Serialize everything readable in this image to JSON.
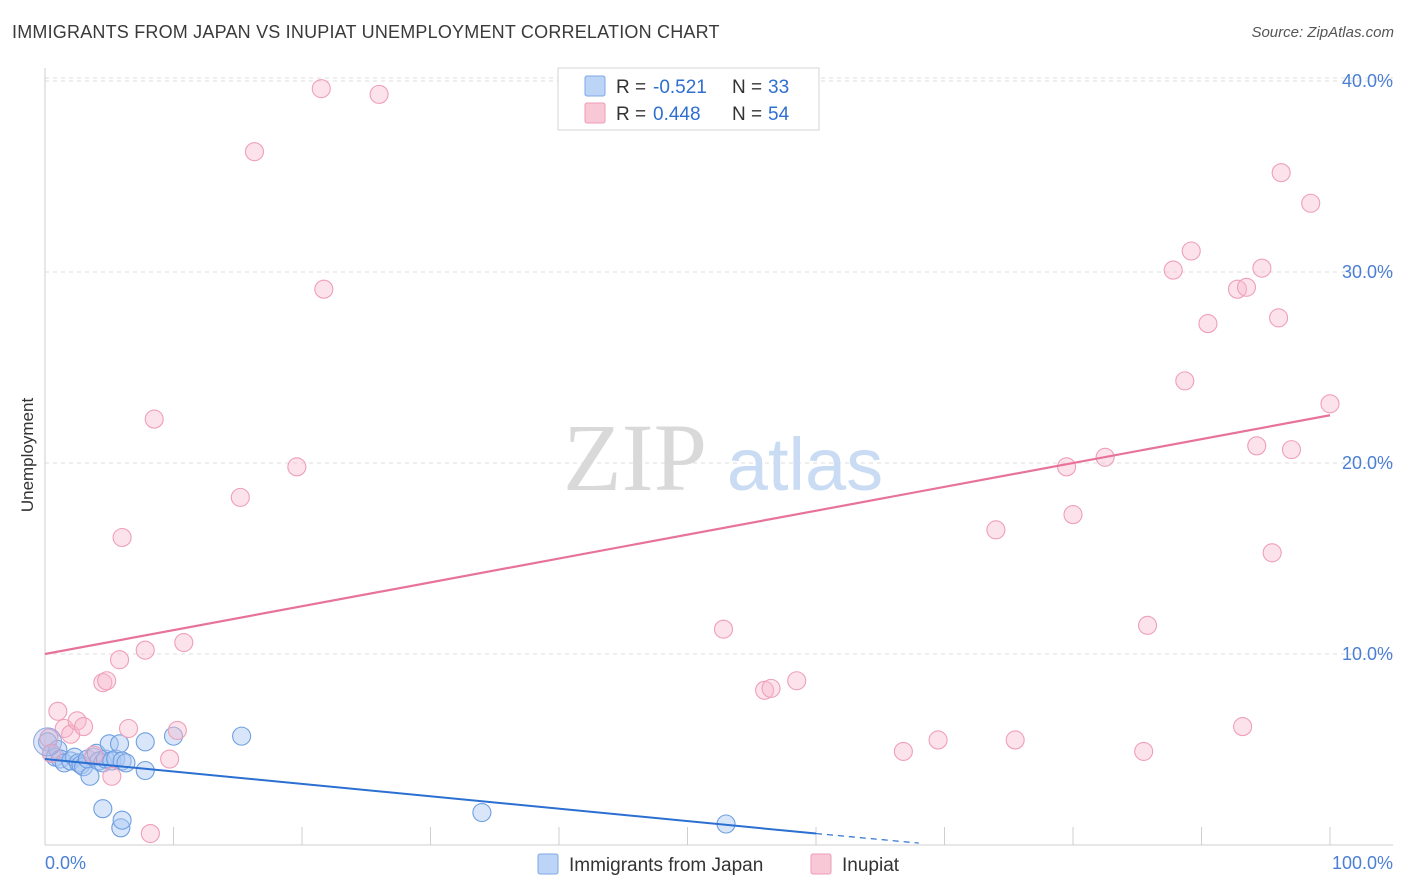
{
  "header": {
    "title": "IMMIGRANTS FROM JAPAN VS INUPIAT UNEMPLOYMENT CORRELATION CHART",
    "source": "Source: ZipAtlas.com"
  },
  "watermark": {
    "zip": "ZIP",
    "atlas": "atlas"
  },
  "colors": {
    "blue": "#8ab4f0",
    "blue_line": "#2a6fd1",
    "pink": "#f4a9c0",
    "pink_line": "#e8739a",
    "axis_text": "#4a7fd4"
  },
  "chart_data": {
    "type": "scatter",
    "title": "IMMIGRANTS FROM JAPAN VS INUPIAT UNEMPLOYMENT CORRELATION CHART",
    "xlabel": "",
    "ylabel": "Unemployment",
    "xlim": [
      0,
      100
    ],
    "ylim": [
      0,
      42
    ],
    "x_tick_labels": [
      "0.0%",
      "100.0%"
    ],
    "y_ticks": [
      10,
      20,
      30,
      40
    ],
    "y_tick_labels": [
      "10.0%",
      "20.0%",
      "30.0%",
      "40.0%"
    ],
    "legend_position": "top-center",
    "legend": [
      {
        "r_label": "R =",
        "r_value": "-0.521",
        "n_label": "N =",
        "n_value": "33"
      },
      {
        "r_label": "R =",
        "r_value": "0.448",
        "n_label": "N =",
        "n_value": "54"
      }
    ],
    "bottom_legend": [
      "Immigrants from Japan",
      "Inupiat"
    ],
    "series": [
      {
        "name": "Immigrants from Japan",
        "trend": {
          "x": [
            0,
            60
          ],
          "y": [
            4.5,
            0.6
          ],
          "dashed_to": [
            68,
            0.1
          ]
        },
        "points": [
          [
            0.2,
            5.4
          ],
          [
            0.5,
            4.8
          ],
          [
            0.8,
            4.6
          ],
          [
            1.0,
            5.0
          ],
          [
            1.2,
            4.5
          ],
          [
            1.5,
            4.3
          ],
          [
            2.0,
            4.4
          ],
          [
            2.3,
            4.6
          ],
          [
            2.6,
            4.3
          ],
          [
            2.8,
            4.2
          ],
          [
            3.0,
            4.1
          ],
          [
            3.3,
            4.5
          ],
          [
            3.5,
            3.6
          ],
          [
            3.8,
            4.6
          ],
          [
            4.0,
            4.8
          ],
          [
            4.2,
            4.4
          ],
          [
            4.5,
            4.3
          ],
          [
            4.7,
            4.5
          ],
          [
            5.0,
            5.3
          ],
          [
            5.2,
            4.4
          ],
          [
            5.5,
            4.5
          ],
          [
            5.8,
            5.3
          ],
          [
            6.0,
            4.4
          ],
          [
            6.3,
            4.3
          ],
          [
            4.5,
            1.9
          ],
          [
            5.9,
            0.9
          ],
          [
            6.0,
            1.3
          ],
          [
            7.8,
            5.4
          ],
          [
            7.8,
            3.9
          ],
          [
            10.0,
            5.7
          ],
          [
            15.3,
            5.7
          ],
          [
            34.0,
            1.7
          ],
          [
            53.0,
            1.1
          ]
        ]
      },
      {
        "name": "Inupiat",
        "trend": {
          "x": [
            0,
            100
          ],
          "y": [
            10.0,
            22.5
          ]
        },
        "points": [
          [
            0.3,
            5.6
          ],
          [
            0.5,
            4.8
          ],
          [
            1.0,
            7.0
          ],
          [
            1.5,
            6.1
          ],
          [
            2.0,
            5.8
          ],
          [
            2.5,
            6.5
          ],
          [
            3.0,
            6.2
          ],
          [
            3.8,
            4.7
          ],
          [
            4.5,
            8.5
          ],
          [
            4.8,
            8.6
          ],
          [
            5.2,
            3.6
          ],
          [
            5.8,
            9.7
          ],
          [
            6.0,
            16.1
          ],
          [
            6.5,
            6.1
          ],
          [
            7.8,
            10.2
          ],
          [
            8.2,
            0.6
          ],
          [
            8.5,
            22.3
          ],
          [
            9.7,
            4.5
          ],
          [
            10.3,
            6.0
          ],
          [
            10.8,
            10.6
          ],
          [
            15.2,
            18.2
          ],
          [
            16.3,
            36.3
          ],
          [
            19.6,
            19.8
          ],
          [
            21.5,
            39.6
          ],
          [
            21.7,
            29.1
          ],
          [
            26.0,
            39.3
          ],
          [
            52.8,
            11.3
          ],
          [
            56.0,
            8.1
          ],
          [
            56.5,
            8.2
          ],
          [
            58.5,
            8.6
          ],
          [
            66.8,
            4.9
          ],
          [
            69.5,
            5.5
          ],
          [
            74.0,
            16.5
          ],
          [
            75.5,
            5.5
          ],
          [
            79.5,
            19.8
          ],
          [
            80.0,
            17.3
          ],
          [
            82.5,
            20.3
          ],
          [
            85.5,
            4.9
          ],
          [
            85.8,
            11.5
          ],
          [
            87.8,
            30.1
          ],
          [
            88.7,
            24.3
          ],
          [
            89.2,
            31.1
          ],
          [
            90.5,
            27.3
          ],
          [
            92.8,
            29.1
          ],
          [
            93.2,
            6.2
          ],
          [
            93.5,
            29.2
          ],
          [
            94.3,
            20.9
          ],
          [
            94.7,
            30.2
          ],
          [
            95.5,
            15.3
          ],
          [
            96.0,
            27.6
          ],
          [
            96.2,
            35.2
          ],
          [
            97.0,
            20.7
          ],
          [
            98.5,
            33.6
          ],
          [
            100.0,
            23.1
          ]
        ]
      }
    ]
  }
}
